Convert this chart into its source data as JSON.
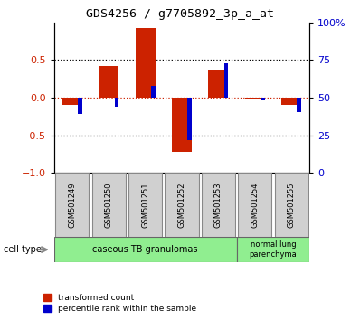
{
  "title": "GDS4256 / g7705892_3p_a_at",
  "samples": [
    "GSM501249",
    "GSM501250",
    "GSM501251",
    "GSM501252",
    "GSM501253",
    "GSM501254",
    "GSM501255"
  ],
  "red_values": [
    -0.1,
    0.42,
    0.93,
    -0.72,
    0.37,
    -0.03,
    -0.1
  ],
  "blue_values": [
    -0.22,
    -0.12,
    0.15,
    -0.56,
    0.46,
    -0.04,
    -0.19
  ],
  "ylim": [
    -1.0,
    1.0
  ],
  "yticks_red": [
    -1.0,
    -0.5,
    0.0,
    0.5
  ],
  "yticks_blue_pos": [
    -1.0,
    -0.5,
    0.0,
    0.5,
    1.0
  ],
  "yticks_blue_labels": [
    "0",
    "25",
    "50",
    "75",
    "100%"
  ],
  "red_color": "#cc2200",
  "blue_color": "#0000cc",
  "red_bar_width": 0.55,
  "blue_bar_width": 0.12,
  "legend_red": "transformed count",
  "legend_blue": "percentile rank within the sample",
  "cell_type1_label": "caseous TB granulomas",
  "cell_type1_count": 5,
  "cell_type2_label": "normal lung\nparenchyma",
  "cell_type2_count": 2,
  "cell_color": "#90ee90",
  "sample_box_color": "#d0d0d0",
  "dotted_lines": [
    0.5,
    0.0,
    -0.5
  ],
  "background": "white"
}
